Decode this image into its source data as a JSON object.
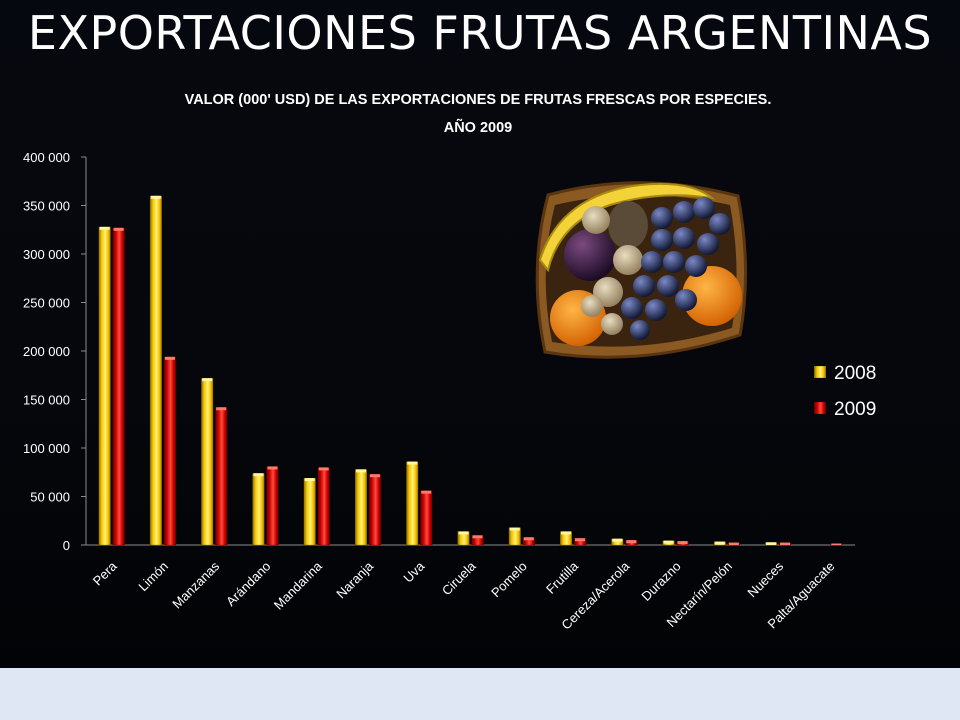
{
  "slide": {
    "title": "EXPORTACIONES FRUTAS ARGENTINAS"
  },
  "chart_data": {
    "type": "bar",
    "title": "VALOR (000' USD) DE LAS EXPORTACIONES DE FRUTAS FRESCAS POR ESPECIES.",
    "subtitle": "AÑO 2009",
    "xlabel": "",
    "ylabel": "",
    "ylim": [
      0,
      400000
    ],
    "yticks": [
      0,
      50000,
      100000,
      150000,
      200000,
      250000,
      300000,
      350000,
      400000
    ],
    "ytick_labels": [
      "0",
      "50 000",
      "100 000",
      "150 000",
      "200 000",
      "250 000",
      "300 000",
      "350 000",
      "400 000"
    ],
    "grid": false,
    "legend_position": "right",
    "categories": [
      "Pera",
      "Limón",
      "Manzanas",
      "Arándano",
      "Mandarina",
      "Naranja",
      "Uva",
      "Ciruela",
      "Pomelo",
      "Frutilla",
      "Cereza/Acerola",
      "Durazno",
      "Nectarín/Pelón",
      "Nueces",
      "Palta/Aguacate"
    ],
    "series": [
      {
        "name": "2008",
        "color": "#f2c200",
        "values": [
          328000,
          360000,
          172000,
          74000,
          69000,
          78000,
          86000,
          14000,
          18000,
          14000,
          6500,
          4500,
          3500,
          2800,
          0
        ]
      },
      {
        "name": "2009",
        "color": "#d40000",
        "values": [
          327000,
          194000,
          142000,
          81000,
          80000,
          73000,
          56000,
          10000,
          8000,
          7000,
          5000,
          4000,
          2500,
          2500,
          1500
        ]
      }
    ]
  },
  "image": {
    "icon": "fruit-basket-image"
  }
}
